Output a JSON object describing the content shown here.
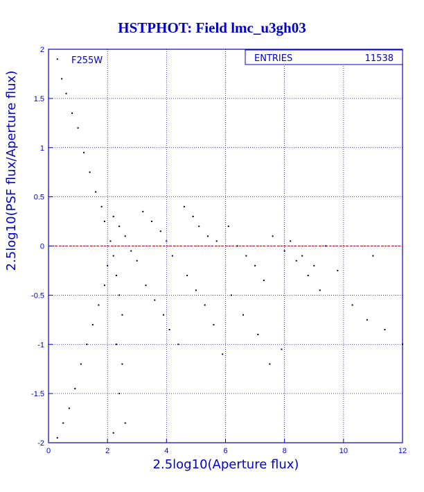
{
  "chart_data": {
    "type": "scatter",
    "title": "HSTPHOT: Field lmc_u3gh03",
    "xlabel": "2.5log10(Aperture flux)",
    "ylabel": "2.5log10(PSF flux/Aperture flux)",
    "filter_label": "F255W",
    "stats": {
      "entries_label": "ENTRIES",
      "entries_value": "11538"
    },
    "xlim": [
      0,
      12
    ],
    "ylim": [
      -2,
      2
    ],
    "xticks": [
      {
        "value": 0,
        "label": "0"
      },
      {
        "value": 2,
        "label": "2"
      },
      {
        "value": 4,
        "label": "4"
      },
      {
        "value": 6,
        "label": "6"
      },
      {
        "value": 8,
        "label": "8"
      },
      {
        "value": 10,
        "label": "10"
      },
      {
        "value": 12,
        "label": "12"
      }
    ],
    "yticks": [
      {
        "value": 2,
        "label": "2"
      },
      {
        "value": 1.5,
        "label": "1.5"
      },
      {
        "value": 1,
        "label": "1"
      },
      {
        "value": 0.5,
        "label": "0.5"
      },
      {
        "value": 0,
        "label": "0"
      },
      {
        "value": -0.5,
        "label": "-0.5"
      },
      {
        "value": -1,
        "label": "-1"
      },
      {
        "value": -1.5,
        "label": "-1.5"
      },
      {
        "value": -2,
        "label": "-2"
      }
    ],
    "grid": true,
    "reference_line": {
      "y": 0
    },
    "series": [
      {
        "points": [
          [
            0.3,
            1.9
          ],
          [
            0.45,
            1.7
          ],
          [
            0.6,
            1.55
          ],
          [
            0.8,
            1.35
          ],
          [
            1.0,
            1.2
          ],
          [
            1.2,
            0.95
          ],
          [
            1.4,
            0.75
          ],
          [
            1.6,
            0.55
          ],
          [
            1.8,
            0.4
          ],
          [
            1.9,
            0.25
          ],
          [
            0.3,
            -1.95
          ],
          [
            0.5,
            -1.8
          ],
          [
            0.7,
            -1.65
          ],
          [
            0.9,
            -1.45
          ],
          [
            1.1,
            -1.2
          ],
          [
            1.3,
            -1.0
          ],
          [
            1.5,
            -0.8
          ],
          [
            1.7,
            -0.6
          ],
          [
            1.9,
            -0.4
          ],
          [
            2.0,
            -0.2
          ],
          [
            2.1,
            0.05
          ],
          [
            2.2,
            -0.1
          ],
          [
            2.3,
            -0.3
          ],
          [
            2.4,
            -0.5
          ],
          [
            2.5,
            -0.7
          ],
          [
            2.2,
            0.3
          ],
          [
            2.4,
            0.2
          ],
          [
            2.6,
            0.1
          ],
          [
            2.8,
            -0.05
          ],
          [
            3.0,
            -0.15
          ],
          [
            2.3,
            -1.0
          ],
          [
            2.5,
            -1.2
          ],
          [
            2.4,
            -1.5
          ],
          [
            2.6,
            -1.8
          ],
          [
            2.2,
            -1.9
          ],
          [
            3.2,
            0.35
          ],
          [
            3.5,
            0.25
          ],
          [
            3.8,
            0.15
          ],
          [
            4.0,
            0.05
          ],
          [
            4.2,
            -0.1
          ],
          [
            3.3,
            -0.4
          ],
          [
            3.6,
            -0.55
          ],
          [
            3.9,
            -0.7
          ],
          [
            4.1,
            -0.85
          ],
          [
            4.4,
            -1.0
          ],
          [
            4.6,
            0.4
          ],
          [
            4.9,
            0.3
          ],
          [
            5.1,
            0.2
          ],
          [
            5.4,
            0.1
          ],
          [
            5.7,
            0.05
          ],
          [
            4.7,
            -0.3
          ],
          [
            5.0,
            -0.45
          ],
          [
            5.3,
            -0.6
          ],
          [
            5.6,
            -0.8
          ],
          [
            5.9,
            -1.1
          ],
          [
            6.1,
            0.2
          ],
          [
            6.4,
            0.0
          ],
          [
            6.7,
            -0.1
          ],
          [
            7.0,
            -0.2
          ],
          [
            7.3,
            -0.35
          ],
          [
            6.2,
            -0.5
          ],
          [
            6.6,
            -0.7
          ],
          [
            7.1,
            -0.9
          ],
          [
            7.5,
            -1.2
          ],
          [
            7.9,
            -1.05
          ],
          [
            7.6,
            0.1
          ],
          [
            8.0,
            -0.05
          ],
          [
            8.4,
            -0.15
          ],
          [
            8.8,
            -0.3
          ],
          [
            9.2,
            -0.45
          ],
          [
            8.2,
            0.05
          ],
          [
            8.6,
            -0.1
          ],
          [
            9.0,
            -0.2
          ],
          [
            9.4,
            0.0
          ],
          [
            9.8,
            -0.25
          ],
          [
            10.3,
            -0.6
          ],
          [
            10.8,
            -0.75
          ],
          [
            11.0,
            -0.1
          ],
          [
            11.4,
            -0.85
          ],
          [
            12.0,
            -1.0
          ]
        ]
      }
    ]
  }
}
